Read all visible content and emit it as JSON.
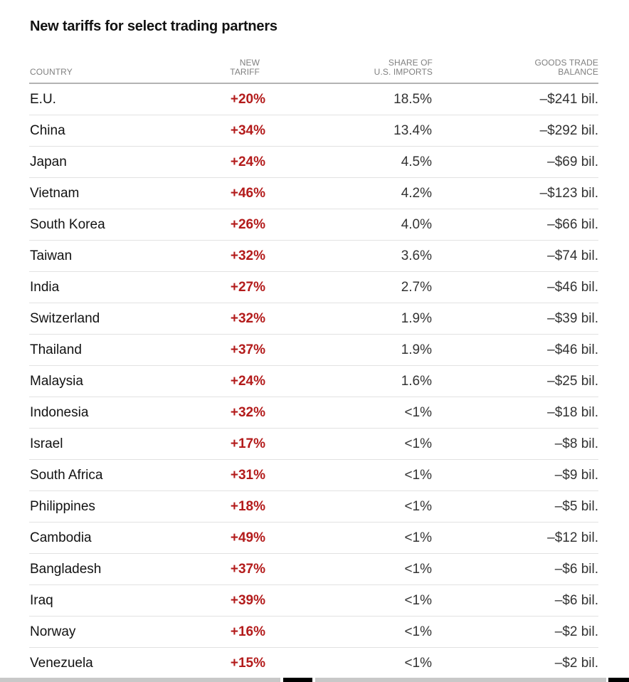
{
  "title": "New tariffs for select trading partners",
  "chart_data": {
    "type": "table",
    "title": "New tariffs for select trading partners",
    "columns": [
      {
        "key": "country",
        "label_lines": [
          "COUNTRY"
        ]
      },
      {
        "key": "tariff",
        "label_lines": [
          "NEW",
          "TARIFF"
        ]
      },
      {
        "key": "share",
        "label_lines": [
          "SHARE OF",
          "U.S. IMPORTS"
        ]
      },
      {
        "key": "balance",
        "label_lines": [
          "GOODS TRADE",
          "BALANCE"
        ]
      }
    ],
    "rows": [
      {
        "country": "E.U.",
        "tariff": "+20%",
        "share": "18.5%",
        "balance": "–$241 bil."
      },
      {
        "country": "China",
        "tariff": "+34%",
        "share": "13.4%",
        "balance": "–$292 bil."
      },
      {
        "country": "Japan",
        "tariff": "+24%",
        "share": "4.5%",
        "balance": "–$69 bil."
      },
      {
        "country": "Vietnam",
        "tariff": "+46%",
        "share": "4.2%",
        "balance": "–$123 bil."
      },
      {
        "country": "South Korea",
        "tariff": "+26%",
        "share": "4.0%",
        "balance": "–$66 bil."
      },
      {
        "country": "Taiwan",
        "tariff": "+32%",
        "share": "3.6%",
        "balance": "–$74 bil."
      },
      {
        "country": "India",
        "tariff": "+27%",
        "share": "2.7%",
        "balance": "–$46 bil."
      },
      {
        "country": "Switzerland",
        "tariff": "+32%",
        "share": "1.9%",
        "balance": "–$39 bil."
      },
      {
        "country": "Thailand",
        "tariff": "+37%",
        "share": "1.9%",
        "balance": "–$46 bil."
      },
      {
        "country": "Malaysia",
        "tariff": "+24%",
        "share": "1.6%",
        "balance": "–$25 bil."
      },
      {
        "country": "Indonesia",
        "tariff": "+32%",
        "share": "<1%",
        "balance": "–$18 bil."
      },
      {
        "country": "Israel",
        "tariff": "+17%",
        "share": "<1%",
        "balance": "–$8 bil."
      },
      {
        "country": "South Africa",
        "tariff": "+31%",
        "share": "<1%",
        "balance": "–$9 bil."
      },
      {
        "country": "Philippines",
        "tariff": "+18%",
        "share": "<1%",
        "balance": "–$5 bil."
      },
      {
        "country": "Cambodia",
        "tariff": "+49%",
        "share": "<1%",
        "balance": "–$12 bil."
      },
      {
        "country": "Bangladesh",
        "tariff": "+37%",
        "share": "<1%",
        "balance": "–$6 bil."
      },
      {
        "country": "Iraq",
        "tariff": "+39%",
        "share": "<1%",
        "balance": "–$6 bil."
      },
      {
        "country": "Norway",
        "tariff": "+16%",
        "share": "<1%",
        "balance": "–$2 bil."
      },
      {
        "country": "Venezuela",
        "tariff": "+15%",
        "share": "<1%",
        "balance": "–$2 bil."
      }
    ]
  },
  "colors": {
    "tariff_text": "#b31b1b",
    "header_text": "#808080",
    "body_text": "#333333",
    "row_divider": "#e2e2e2",
    "header_divider": "#b3b3b3"
  }
}
